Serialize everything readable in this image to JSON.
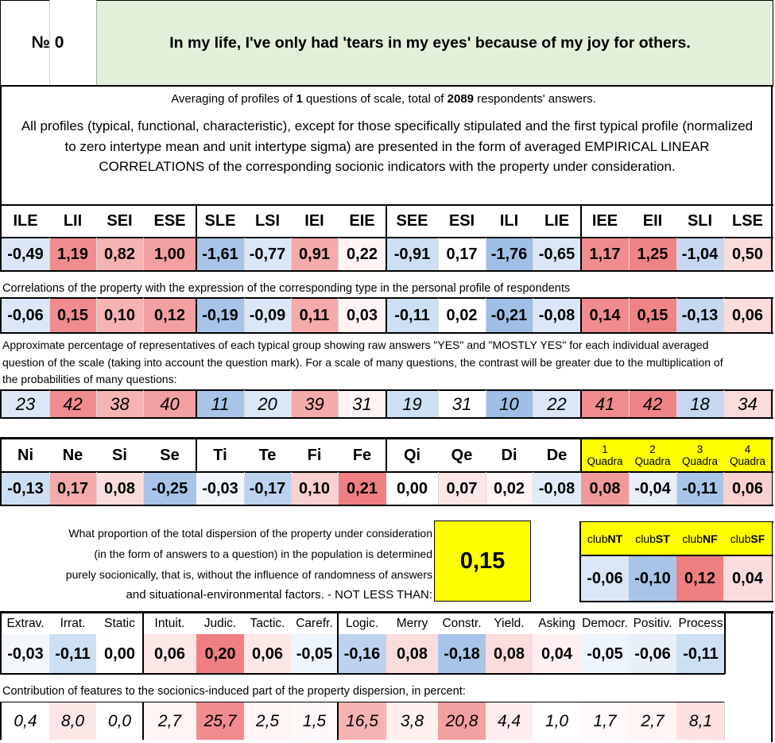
{
  "header": {
    "number_label": "№ 0",
    "title": "In my life, I've only had 'tears in my eyes' because of my joy for others."
  },
  "averaging": {
    "prefix": "Averaging of profiles of ",
    "questions": "1",
    "middle": " questions of scale, total of ",
    "respondents": "2089",
    "suffix": " respondents' answers."
  },
  "description": "All profiles (typical, functional, characteristic), except for those specifically stipulated and the first typical profile (normalized to zero intertype mean and unit intertype sigma) are presented in the form of averaged EMPIRICAL LINEAR CORRELATIONS of the corresponding socionic indicators with the property under consideration.",
  "types": {
    "headers": [
      "ILE",
      "LII",
      "SEI",
      "ESE",
      "SLE",
      "LSI",
      "IEI",
      "EIE",
      "SEE",
      "ESI",
      "ILI",
      "LIE",
      "IEE",
      "EII",
      "SLI",
      "LSE"
    ],
    "profile": [
      "-0,49",
      "1,19",
      "0,82",
      "1,00",
      "-1,61",
      "-0,77",
      "0,91",
      "0,22",
      "-0,91",
      "0,17",
      "-1,76",
      "-0,65",
      "1,17",
      "1,25",
      "-1,04",
      "0,50"
    ],
    "profile_colors": [
      "#dbe7f6",
      "#f08c8f",
      "#f6b3b4",
      "#f3a0a2",
      "#a8c4e8",
      "#dbe7f6",
      "#f5aaab",
      "#fff3f3",
      "#cddff2",
      "#ffffff",
      "#9fbfe6",
      "#dbe7f6",
      "#f08c8f",
      "#ef8487",
      "#c5d8f0",
      "#fbdcdc"
    ],
    "correlation_caption": "Correlations of the property with the expression of the corresponding type in the personal profile of respondents",
    "correlations": [
      "-0,06",
      "0,15",
      "0,10",
      "0,12",
      "-0,19",
      "-0,09",
      "0,11",
      "0,03",
      "-0,11",
      "0,02",
      "-0,21",
      "-0,08",
      "0,14",
      "0,15",
      "-0,13",
      "0,06"
    ],
    "correlation_colors": [
      "#dbe7f6",
      "#f08c8f",
      "#f6b3b4",
      "#f3a0a2",
      "#a8c4e8",
      "#dbe7f6",
      "#f5aaab",
      "#fff3f3",
      "#cddff2",
      "#ffffff",
      "#9fbfe6",
      "#dbe7f6",
      "#f08c8f",
      "#ef8487",
      "#c5d8f0",
      "#fbdcdc"
    ],
    "percent_caption": "Approximate percentage of representatives of each typical group showing raw answers \"YES\" and \"MOSTLY YES\" for each individual averaged question of the scale (taking into account the question mark). For a scale of many questions, the contrast will be greater due to the multiplication of the probabilities of many questions:",
    "percentages": [
      "23",
      "42",
      "38",
      "40",
      "11",
      "20",
      "39",
      "31",
      "19",
      "31",
      "10",
      "22",
      "41",
      "42",
      "18",
      "34"
    ],
    "percentage_colors": [
      "#dbe7f6",
      "#f08c8f",
      "#f6b3b4",
      "#f3a0a2",
      "#a8c4e8",
      "#dbe7f6",
      "#f5aaab",
      "#fff3f3",
      "#cddff2",
      "#ffffff",
      "#9fbfe6",
      "#dbe7f6",
      "#f08c8f",
      "#ef8487",
      "#c5d8f0",
      "#fbdcdc"
    ]
  },
  "functions": {
    "headers": [
      "Ni",
      "Ne",
      "Si",
      "Se",
      "Ti",
      "Te",
      "Fi",
      "Fe",
      "Qi",
      "Qe",
      "Di",
      "De"
    ],
    "values": [
      "-0,13",
      "0,17",
      "0,08",
      "-0,25",
      "-0,03",
      "-0,17",
      "0,10",
      "0,21",
      "0,00",
      "0,07",
      "0,02",
      "-0,08"
    ],
    "colors": [
      "#cddff2",
      "#f5aaab",
      "#fbdcdc",
      "#a8c4e8",
      "#f3f7fc",
      "#bcd2ee",
      "#fbd0d0",
      "#ef7f82",
      "#ffffff",
      "#fde6e6",
      "#fff5f5",
      "#e2ecf8"
    ]
  },
  "quadras": {
    "headers": [
      {
        "num": "1",
        "label": "Quadra"
      },
      {
        "num": "2",
        "label": "Quadra"
      },
      {
        "num": "3",
        "label": "Quadra"
      },
      {
        "num": "4",
        "label": "Quadra"
      }
    ],
    "values": [
      "0,08",
      "-0,04",
      "-0,11",
      "0,06"
    ],
    "colors": [
      "#f09a9c",
      "#e8eff9",
      "#a8c4e8",
      "#fbd0d0"
    ],
    "header_color": "#ffff00"
  },
  "dispersion": {
    "question_lines": [
      "What proportion of the total dispersion of the property under consideration",
      "(in the form of answers to a question) in the population is determined",
      "purely socionically, that is, without the influence of randomness of answers",
      "and situational-environmental factors. - NOT LESS THAN:"
    ],
    "value": "0,15",
    "value_color": "#ffff00"
  },
  "clubs": {
    "headers": [
      {
        "prefix": "club",
        "bold": "NT"
      },
      {
        "prefix": "club",
        "bold": "ST"
      },
      {
        "prefix": "club",
        "bold": "NF"
      },
      {
        "prefix": "club",
        "bold": "SF"
      }
    ],
    "values": [
      "-0,06",
      "-0,10",
      "0,12",
      "0,04"
    ],
    "colors": [
      "#dbe7f6",
      "#a8c4e8",
      "#ef7f82",
      "#fbdcdc"
    ],
    "header_color": "#ffff00"
  },
  "traits": {
    "headers": [
      "Extrav.",
      "Irrat.",
      "Static",
      "Intuit.",
      "Judic.",
      "Tactic.",
      "Carefr.",
      "Logic.",
      "Merry",
      "Constr.",
      "Yield.",
      "Asking",
      "Democr.",
      "Positiv.",
      "Process"
    ],
    "values": [
      "-0,03",
      "-0,11",
      "0,00",
      "0,06",
      "0,20",
      "0,06",
      "-0,05",
      "-0,16",
      "0,08",
      "-0,18",
      "0,08",
      "0,04",
      "-0,05",
      "-0,06",
      "-0,11"
    ],
    "colors": [
      "#f3f7fc",
      "#cddff2",
      "#ffffff",
      "#fde6e6",
      "#ef7f82",
      "#fde6e6",
      "#eef4fb",
      "#bcd2ee",
      "#fbdcdc",
      "#a8c4e8",
      "#fbdcdc",
      "#fff0f0",
      "#eef4fb",
      "#e8eff9",
      "#cddff2"
    ],
    "contribution_caption": "Contribution of features to the sociоnics-induced part of the property dispersion, in percent:",
    "contributions": [
      "0,4",
      "8,0",
      "0,0",
      "2,7",
      "25,7",
      "2,5",
      "1,5",
      "16,5",
      "3,8",
      "20,8",
      "4,4",
      "1,0",
      "1,7",
      "2,7",
      "8,1"
    ],
    "contribution_colors": [
      "#ffffff",
      "#fde6e6",
      "#ffffff",
      "#fff5f5",
      "#f08c8f",
      "#fff5f5",
      "#fff8f8",
      "#f6b3b4",
      "#fff0f0",
      "#f3a0a2",
      "#ffecec",
      "#ffffff",
      "#fffafa",
      "#fff5f5",
      "#fde1e1"
    ]
  },
  "colors": {
    "title_background": "#e2efd9",
    "strong_red": "#ef7f82",
    "strong_blue": "#a8c4e8"
  }
}
